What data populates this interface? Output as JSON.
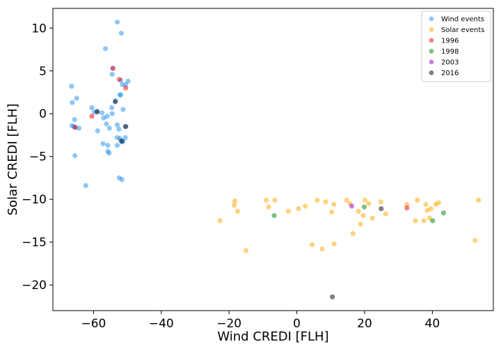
{
  "chart_data": {
    "type": "scatter",
    "xlabel": "Wind CREDI [FLH]",
    "ylabel": "Solar CREDI [FLH]",
    "xlim": [
      -72,
      58
    ],
    "ylim": [
      -23,
      12.3
    ],
    "xticks": [
      -60,
      -40,
      -20,
      0,
      20,
      40
    ],
    "yticks": [
      -20,
      -15,
      -10,
      -5,
      0,
      5,
      10
    ],
    "xtick_labels": [
      "−60",
      "−40",
      "−20",
      "0",
      "20",
      "40"
    ],
    "ytick_labels": [
      "−20",
      "−15",
      "−10",
      "−5",
      "0",
      "5",
      "10"
    ],
    "grid": false,
    "legend_position": "top-right",
    "series": [
      {
        "name": "Wind events",
        "color": "#1f8ef0",
        "opacity": 0.5,
        "points": [
          [
            -53,
            10.7
          ],
          [
            -51.8,
            9.4
          ],
          [
            -56.5,
            7.6
          ],
          [
            -54.5,
            4.6
          ],
          [
            -54.3,
            5.3
          ],
          [
            -66.5,
            3.2
          ],
          [
            -65,
            1.8
          ],
          [
            -66.3,
            1.3
          ],
          [
            -52,
            3.9
          ],
          [
            -51.5,
            3.4
          ],
          [
            -50.5,
            3.4
          ],
          [
            -49.8,
            3.8
          ],
          [
            -52,
            2.2
          ],
          [
            -52.2,
            2.2
          ],
          [
            -53.5,
            1.5
          ],
          [
            -54.6,
            0.7
          ],
          [
            -51.3,
            0.5
          ],
          [
            -60.5,
            0.7
          ],
          [
            -59.8,
            0.2
          ],
          [
            -59,
            0.3
          ],
          [
            -57.5,
            0.1
          ],
          [
            -56,
            -0.3
          ],
          [
            -57,
            -0.5
          ],
          [
            -65.6,
            -0.7
          ],
          [
            -54.5,
            0
          ],
          [
            -53,
            -1.3
          ],
          [
            -65.8,
            -1.5
          ],
          [
            -66.4,
            -1.4
          ],
          [
            -64.3,
            -1.7
          ],
          [
            -65.4,
            -1.6
          ],
          [
            -58.8,
            -2
          ],
          [
            -56.2,
            -1.2
          ],
          [
            -55.3,
            -1.7
          ],
          [
            -52.5,
            -1.8
          ],
          [
            -50.6,
            -1.5
          ],
          [
            -53,
            -2.8
          ],
          [
            -52.2,
            -2.9
          ],
          [
            -50.6,
            -2.8
          ],
          [
            -51.3,
            -3.2
          ],
          [
            -51.5,
            -3.3
          ],
          [
            -57.2,
            -3.5
          ],
          [
            -55.8,
            -3.7
          ],
          [
            -53,
            -3.7
          ],
          [
            -55.8,
            -4.4
          ],
          [
            -55.4,
            -4.6
          ],
          [
            -65.5,
            -4.9
          ],
          [
            -52.4,
            -7.5
          ],
          [
            -51.6,
            -7.7
          ],
          [
            -62.3,
            -8.4
          ]
        ]
      },
      {
        "name": "Solar events",
        "color": "#ffa500",
        "opacity": 0.5,
        "points": [
          [
            -22.7,
            -12.5
          ],
          [
            -18.5,
            -10.7
          ],
          [
            -18.3,
            -10.2
          ],
          [
            -17.5,
            -11.4
          ],
          [
            -15,
            -16
          ],
          [
            -9,
            -10.1
          ],
          [
            -8.3,
            -10.9
          ],
          [
            -6.5,
            -10.1
          ],
          [
            -2.5,
            -11.4
          ],
          [
            0.5,
            -11.1
          ],
          [
            2.5,
            -10.8
          ],
          [
            4.5,
            -15.3
          ],
          [
            6,
            -10.1
          ],
          [
            7.5,
            -15.8
          ],
          [
            8.5,
            -10.3
          ],
          [
            10.3,
            -11.5
          ],
          [
            10.9,
            -10.6
          ],
          [
            11,
            -15.2
          ],
          [
            14.7,
            -10.1
          ],
          [
            15.7,
            -10.5
          ],
          [
            16.6,
            -14
          ],
          [
            18.2,
            -11.4
          ],
          [
            18.8,
            -12.9
          ],
          [
            19.6,
            -11.9
          ],
          [
            20.1,
            -10.1
          ],
          [
            21.2,
            -10.5
          ],
          [
            22.3,
            -12.2
          ],
          [
            24.8,
            -10.3
          ],
          [
            26.2,
            -11.7
          ],
          [
            32.5,
            -10.6
          ],
          [
            35,
            -12.5
          ],
          [
            35.6,
            -10.1
          ],
          [
            37.5,
            -12.5
          ],
          [
            38.1,
            -10.6
          ],
          [
            38.5,
            -11.3
          ],
          [
            39.2,
            -12.2
          ],
          [
            39.6,
            -11.1
          ],
          [
            41,
            -10.6
          ],
          [
            41.8,
            -10.4
          ],
          [
            52.6,
            -14.8
          ],
          [
            53.6,
            -10.1
          ]
        ]
      },
      {
        "name": "1996",
        "color": "#ff0000",
        "opacity": 0.5,
        "points": [
          [
            -54.3,
            5.3
          ],
          [
            -52.4,
            4
          ],
          [
            -50.5,
            3
          ],
          [
            -60.5,
            -0.3
          ],
          [
            -65.4,
            -1.6
          ],
          [
            32.5,
            -11
          ]
        ]
      },
      {
        "name": "1998",
        "color": "#008000",
        "opacity": 0.5,
        "points": [
          [
            -6.7,
            -11.9
          ],
          [
            19.9,
            -10.9
          ],
          [
            40.1,
            -12.5
          ],
          [
            43.3,
            -11.6
          ]
        ]
      },
      {
        "name": "2003",
        "color": "#9400d3",
        "opacity": 0.5,
        "points": [
          [
            16.2,
            -10.8
          ]
        ]
      },
      {
        "name": "2016",
        "color": "#000000",
        "opacity": 0.5,
        "points": [
          [
            -58.9,
            0.2
          ],
          [
            -53.6,
            1.4
          ],
          [
            -50.5,
            -1.5
          ],
          [
            -51.8,
            -3.2
          ],
          [
            10.5,
            -21.4
          ],
          [
            24.9,
            -11.1
          ]
        ]
      }
    ]
  }
}
